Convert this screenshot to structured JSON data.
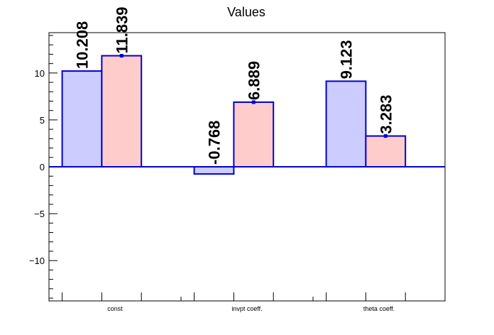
{
  "chart_data": {
    "type": "bar",
    "title": "Values",
    "categories": [
      "const",
      "invpt coeff.",
      "theta coeff."
    ],
    "series": [
      {
        "values": [
          10.208,
          -0.768,
          9.123
        ],
        "labels": [
          "10.208",
          "-0.768",
          "9.123"
        ],
        "fill": "#ccccff",
        "stroke": "#0000cc"
      },
      {
        "values": [
          11.839,
          6.889,
          3.283
        ],
        "labels": [
          "11.839",
          "6.889",
          "3.283"
        ],
        "fill": "#ffcccc",
        "stroke": "#0000cc",
        "error_bars": true
      }
    ],
    "ylim": [
      -14.3,
      14.3
    ],
    "yticks": [
      -10,
      -5,
      0,
      5,
      10
    ],
    "ytick_labels": [
      "−10",
      "−5",
      "0",
      "5",
      "10"
    ],
    "grid": false,
    "legend": "none"
  }
}
